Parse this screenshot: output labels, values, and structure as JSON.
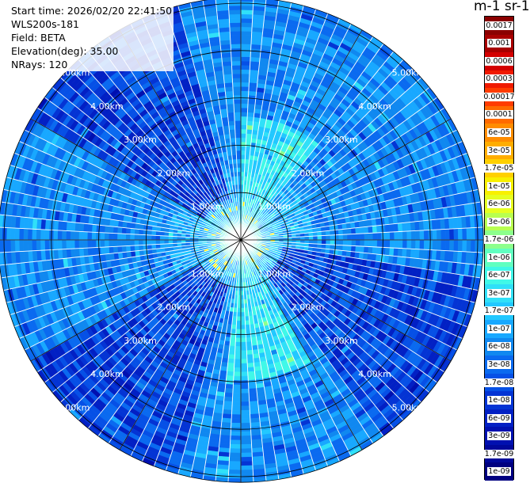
{
  "info": {
    "start_time": "Start time: 2026/02/20 22:41:50",
    "instrument": "WLS200s-181",
    "field": "Field: BETA",
    "elevation": "Elevation(deg): 35.00",
    "nrays": "NRays: 120"
  },
  "units_label": "m-1 sr-1",
  "colorbar": {
    "labels": [
      "0.0017",
      "0.001",
      "0.0006",
      "0.0003",
      "0.00017",
      "0.0001",
      "6e-05",
      "3e-05",
      "1.7e-05",
      "1e-05",
      "6e-06",
      "3e-06",
      "1.7e-06",
      "1e-06",
      "6e-07",
      "3e-07",
      "1.7e-07",
      "1e-07",
      "6e-08",
      "3e-08",
      "1.7e-08",
      "1e-08",
      "6e-09",
      "3e-09",
      "1.7e-09",
      "1e-09"
    ],
    "colors": [
      "#8b0000",
      "#a80000",
      "#d40000",
      "#f01a00",
      "#ff3c00",
      "#ff6a00",
      "#ff8c00",
      "#ffad00",
      "#ffd000",
      "#f8f000",
      "#e6ff20",
      "#b8ff50",
      "#8cff8c",
      "#60ffc0",
      "#40f8e8",
      "#30e0f8",
      "#22c8ff",
      "#18a8ff",
      "#1088f0",
      "#0a6af0",
      "#0650e6",
      "#0434d4",
      "#0220c4",
      "#0010b0",
      "#00089a",
      "#000080"
    ],
    "dark_text_from_index": 20
  },
  "chart_data": {
    "type": "heatmap",
    "projection": "polar PPI (plan position indicator)",
    "field": "BETA",
    "elevation_deg": 35.0,
    "n_rays": 120,
    "range_rings_km": [
      1.0,
      2.0,
      3.0,
      4.0,
      5.0
    ],
    "ring_labels": [
      "1.00km",
      "2.00km",
      "3.00km",
      "4.00km",
      "5.00km"
    ],
    "max_range_km": 5.12,
    "spoke_interval_deg": 30,
    "color_scale": "log",
    "vmin": 1e-09,
    "vmax": 0.0017
  }
}
